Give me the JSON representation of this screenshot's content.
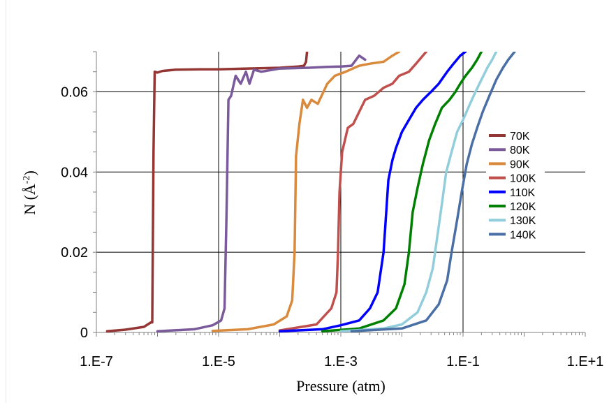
{
  "chart_data": {
    "type": "line",
    "xlabel": "Pressure (atm)",
    "ylabel_main": "N (Å",
    "ylabel_sup": "-2",
    "ylabel_close": ")",
    "xscale": "log",
    "xlim": [
      1e-07,
      10
    ],
    "ylim": [
      0,
      0.07
    ],
    "x_tick_labels": [
      {
        "value": 1e-07,
        "label": "1.E-7"
      },
      {
        "value": 1e-05,
        "label": "1.E-5"
      },
      {
        "value": 0.001,
        "label": "1.E-3"
      },
      {
        "value": 0.1,
        "label": "1.E-1"
      },
      {
        "value": 10,
        "label": "1.E+1"
      }
    ],
    "y_tick_labels": [
      {
        "value": 0,
        "label": "0"
      },
      {
        "value": 0.02,
        "label": "0.02"
      },
      {
        "value": 0.04,
        "label": "0.04"
      },
      {
        "value": 0.06,
        "label": "0.06"
      }
    ],
    "grid": true,
    "legend_position": "right",
    "series": [
      {
        "name": "70K",
        "color": "#943634",
        "points": [
          [
            1.5e-07,
            0.0003
          ],
          [
            3e-07,
            0.0007
          ],
          [
            6e-07,
            0.0014
          ],
          [
            7.8e-07,
            0.0025
          ],
          [
            8.2e-07,
            0.0025
          ],
          [
            8.6e-07,
            0.045
          ],
          [
            9e-07,
            0.065
          ],
          [
            1e-06,
            0.0648
          ],
          [
            1.2e-06,
            0.0652
          ],
          [
            2e-06,
            0.0655
          ],
          [
            5e-06,
            0.0656
          ],
          [
            1e-05,
            0.0656
          ],
          [
            3e-05,
            0.0658
          ],
          [
            0.0001,
            0.066
          ],
          [
            0.0002,
            0.0663
          ],
          [
            0.00025,
            0.0665
          ],
          [
            0.00027,
            0.0675
          ],
          [
            0.00028,
            0.07
          ]
        ]
      },
      {
        "name": "80K",
        "color": "#7a5a9a",
        "points": [
          [
            1e-06,
            0.0003
          ],
          [
            4e-06,
            0.0008
          ],
          [
            8e-06,
            0.0018
          ],
          [
            1.1e-05,
            0.003
          ],
          [
            1.25e-05,
            0.006
          ],
          [
            1.35e-05,
            0.03
          ],
          [
            1.45e-05,
            0.058
          ],
          [
            1.6e-05,
            0.059
          ],
          [
            1.9e-05,
            0.064
          ],
          [
            2.3e-05,
            0.062
          ],
          [
            2.8e-05,
            0.065
          ],
          [
            3.2e-05,
            0.062
          ],
          [
            3.8e-05,
            0.0655
          ],
          [
            5e-05,
            0.065
          ],
          [
            0.0001,
            0.0658
          ],
          [
            0.0003,
            0.066
          ],
          [
            0.0006,
            0.0662
          ],
          [
            0.001,
            0.0663
          ],
          [
            0.0015,
            0.0665
          ],
          [
            0.002,
            0.069
          ],
          [
            0.0025,
            0.068
          ]
        ]
      },
      {
        "name": "90K",
        "color": "#d98a3c",
        "points": [
          [
            8e-06,
            0.0004
          ],
          [
            3e-05,
            0.0008
          ],
          [
            8e-05,
            0.002
          ],
          [
            0.00013,
            0.004
          ],
          [
            0.00016,
            0.008
          ],
          [
            0.000175,
            0.02
          ],
          [
            0.000185,
            0.044
          ],
          [
            0.00021,
            0.052
          ],
          [
            0.00024,
            0.058
          ],
          [
            0.00028,
            0.056
          ],
          [
            0.00033,
            0.058
          ],
          [
            0.00042,
            0.057
          ],
          [
            0.0006,
            0.062
          ],
          [
            0.0008,
            0.064
          ],
          [
            0.0012,
            0.065
          ],
          [
            0.002,
            0.0665
          ],
          [
            0.003,
            0.067
          ],
          [
            0.005,
            0.0675
          ],
          [
            0.007,
            0.069
          ],
          [
            0.009,
            0.07
          ]
        ]
      },
      {
        "name": "100K",
        "color": "#c0504d",
        "points": [
          [
            0.0001,
            0.0005
          ],
          [
            0.0004,
            0.002
          ],
          [
            0.0007,
            0.006
          ],
          [
            0.00085,
            0.01
          ],
          [
            0.0009,
            0.02
          ],
          [
            0.00095,
            0.035
          ],
          [
            0.00105,
            0.045
          ],
          [
            0.0013,
            0.051
          ],
          [
            0.0016,
            0.052
          ],
          [
            0.002,
            0.055
          ],
          [
            0.0025,
            0.058
          ],
          [
            0.0035,
            0.059
          ],
          [
            0.005,
            0.061
          ],
          [
            0.007,
            0.062
          ],
          [
            0.009,
            0.064
          ],
          [
            0.013,
            0.065
          ],
          [
            0.017,
            0.067
          ],
          [
            0.025,
            0.07
          ]
        ]
      },
      {
        "name": "110K",
        "color": "#0000ff",
        "points": [
          [
            0.0001,
            0.0003
          ],
          [
            0.0005,
            0.0008
          ],
          [
            0.001,
            0.0018
          ],
          [
            0.002,
            0.003
          ],
          [
            0.003,
            0.006
          ],
          [
            0.004,
            0.01
          ],
          [
            0.005,
            0.02
          ],
          [
            0.006,
            0.038
          ],
          [
            0.007,
            0.043
          ],
          [
            0.008,
            0.046
          ],
          [
            0.01,
            0.05
          ],
          [
            0.013,
            0.053
          ],
          [
            0.017,
            0.056
          ],
          [
            0.022,
            0.058
          ],
          [
            0.03,
            0.06
          ],
          [
            0.04,
            0.062
          ],
          [
            0.055,
            0.065
          ],
          [
            0.07,
            0.067
          ],
          [
            0.09,
            0.069
          ],
          [
            0.11,
            0.07
          ]
        ]
      },
      {
        "name": "120K",
        "color": "#008000",
        "points": [
          [
            0.0005,
            0.0003
          ],
          [
            0.002,
            0.001
          ],
          [
            0.005,
            0.003
          ],
          [
            0.008,
            0.006
          ],
          [
            0.011,
            0.012
          ],
          [
            0.013,
            0.02
          ],
          [
            0.015,
            0.03
          ],
          [
            0.018,
            0.036
          ],
          [
            0.022,
            0.042
          ],
          [
            0.028,
            0.048
          ],
          [
            0.035,
            0.052
          ],
          [
            0.045,
            0.056
          ],
          [
            0.06,
            0.058
          ],
          [
            0.075,
            0.06
          ],
          [
            0.09,
            0.062
          ],
          [
            0.11,
            0.064
          ],
          [
            0.14,
            0.066
          ],
          [
            0.17,
            0.068
          ],
          [
            0.2,
            0.07
          ]
        ]
      },
      {
        "name": "130K",
        "color": "#92cddc",
        "points": [
          [
            0.001,
            0.0003
          ],
          [
            0.005,
            0.001
          ],
          [
            0.01,
            0.002
          ],
          [
            0.018,
            0.005
          ],
          [
            0.025,
            0.01
          ],
          [
            0.032,
            0.016
          ],
          [
            0.038,
            0.024
          ],
          [
            0.045,
            0.032
          ],
          [
            0.053,
            0.04
          ],
          [
            0.065,
            0.045
          ],
          [
            0.08,
            0.05
          ],
          [
            0.1,
            0.053
          ],
          [
            0.13,
            0.057
          ],
          [
            0.16,
            0.06
          ],
          [
            0.2,
            0.063
          ],
          [
            0.25,
            0.066
          ],
          [
            0.3,
            0.068
          ],
          [
            0.35,
            0.07
          ]
        ]
      },
      {
        "name": "140K",
        "color": "#4a6fa5",
        "points": [
          [
            0.0015,
            0.0003
          ],
          [
            0.01,
            0.001
          ],
          [
            0.025,
            0.003
          ],
          [
            0.04,
            0.007
          ],
          [
            0.055,
            0.013
          ],
          [
            0.065,
            0.02
          ],
          [
            0.08,
            0.028
          ],
          [
            0.095,
            0.035
          ],
          [
            0.115,
            0.042
          ],
          [
            0.14,
            0.047
          ],
          [
            0.17,
            0.051
          ],
          [
            0.21,
            0.055
          ],
          [
            0.27,
            0.059
          ],
          [
            0.35,
            0.063
          ],
          [
            0.45,
            0.066
          ],
          [
            0.55,
            0.068
          ],
          [
            0.7,
            0.07
          ]
        ]
      }
    ]
  }
}
